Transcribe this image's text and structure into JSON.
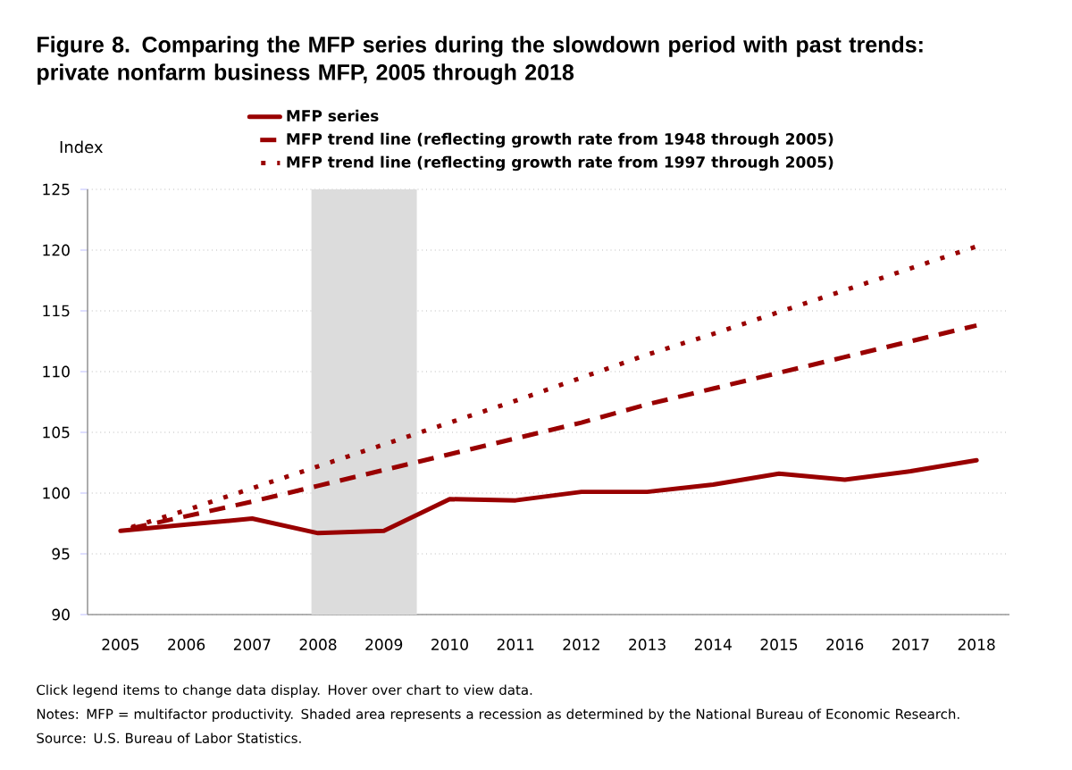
{
  "chart_data": {
    "type": "line",
    "title": "Figure 8. Comparing the MFP series during the slowdown period with past trends: private nonfarm business MFP, 2005 through 2018",
    "ylabel": "Index",
    "x": [
      2005,
      2006,
      2007,
      2008,
      2009,
      2010,
      2011,
      2012,
      2013,
      2014,
      2015,
      2016,
      2017,
      2018
    ],
    "series": [
      {
        "name": "MFP series",
        "color": "#990000",
        "line_style": "solid",
        "values": [
          96.9,
          97.4,
          97.9,
          96.7,
          96.9,
          99.5,
          99.4,
          100.1,
          100.1,
          100.7,
          101.6,
          101.1,
          101.8,
          102.7
        ]
      },
      {
        "name": "MFP trend line (reflecting growth rate from 1948 through 2005)",
        "color": "#990000",
        "line_style": "dashed",
        "values": [
          96.9,
          98.1,
          99.3,
          100.6,
          101.9,
          103.2,
          104.5,
          105.8,
          107.3,
          108.6,
          109.9,
          111.2,
          112.5,
          113.8
        ]
      },
      {
        "name": "MFP trend line (reflecting growth rate from 1997 through 2005)",
        "color": "#990000",
        "line_style": "dotted",
        "values": [
          96.9,
          98.6,
          100.4,
          102.2,
          104.0,
          105.8,
          107.6,
          109.5,
          111.4,
          113.1,
          114.9,
          116.7,
          118.5,
          120.3
        ]
      }
    ],
    "xlim": [
      2004.5,
      2018.5
    ],
    "xticks": [
      2005,
      2006,
      2007,
      2008,
      2009,
      2010,
      2011,
      2012,
      2013,
      2014,
      2015,
      2016,
      2017,
      2018
    ],
    "ylim": [
      90,
      125
    ],
    "yticks": [
      90,
      95,
      100,
      105,
      110,
      115,
      120,
      125
    ],
    "bands": [
      {
        "axis": "x",
        "from": 2007.9,
        "to": 2009.5,
        "color": "#dcdcdc"
      }
    ],
    "grid": "y",
    "legend": "top",
    "marker": "none",
    "annotations": [
      "Click legend items to change data display. Hover over chart to view data.",
      "Notes: MFP = multifactor productivity. Shaded area represents a recession as determined by the National Bureau of Economic Research.",
      "Source: U.S. Bureau of Labor Statistics."
    ]
  }
}
